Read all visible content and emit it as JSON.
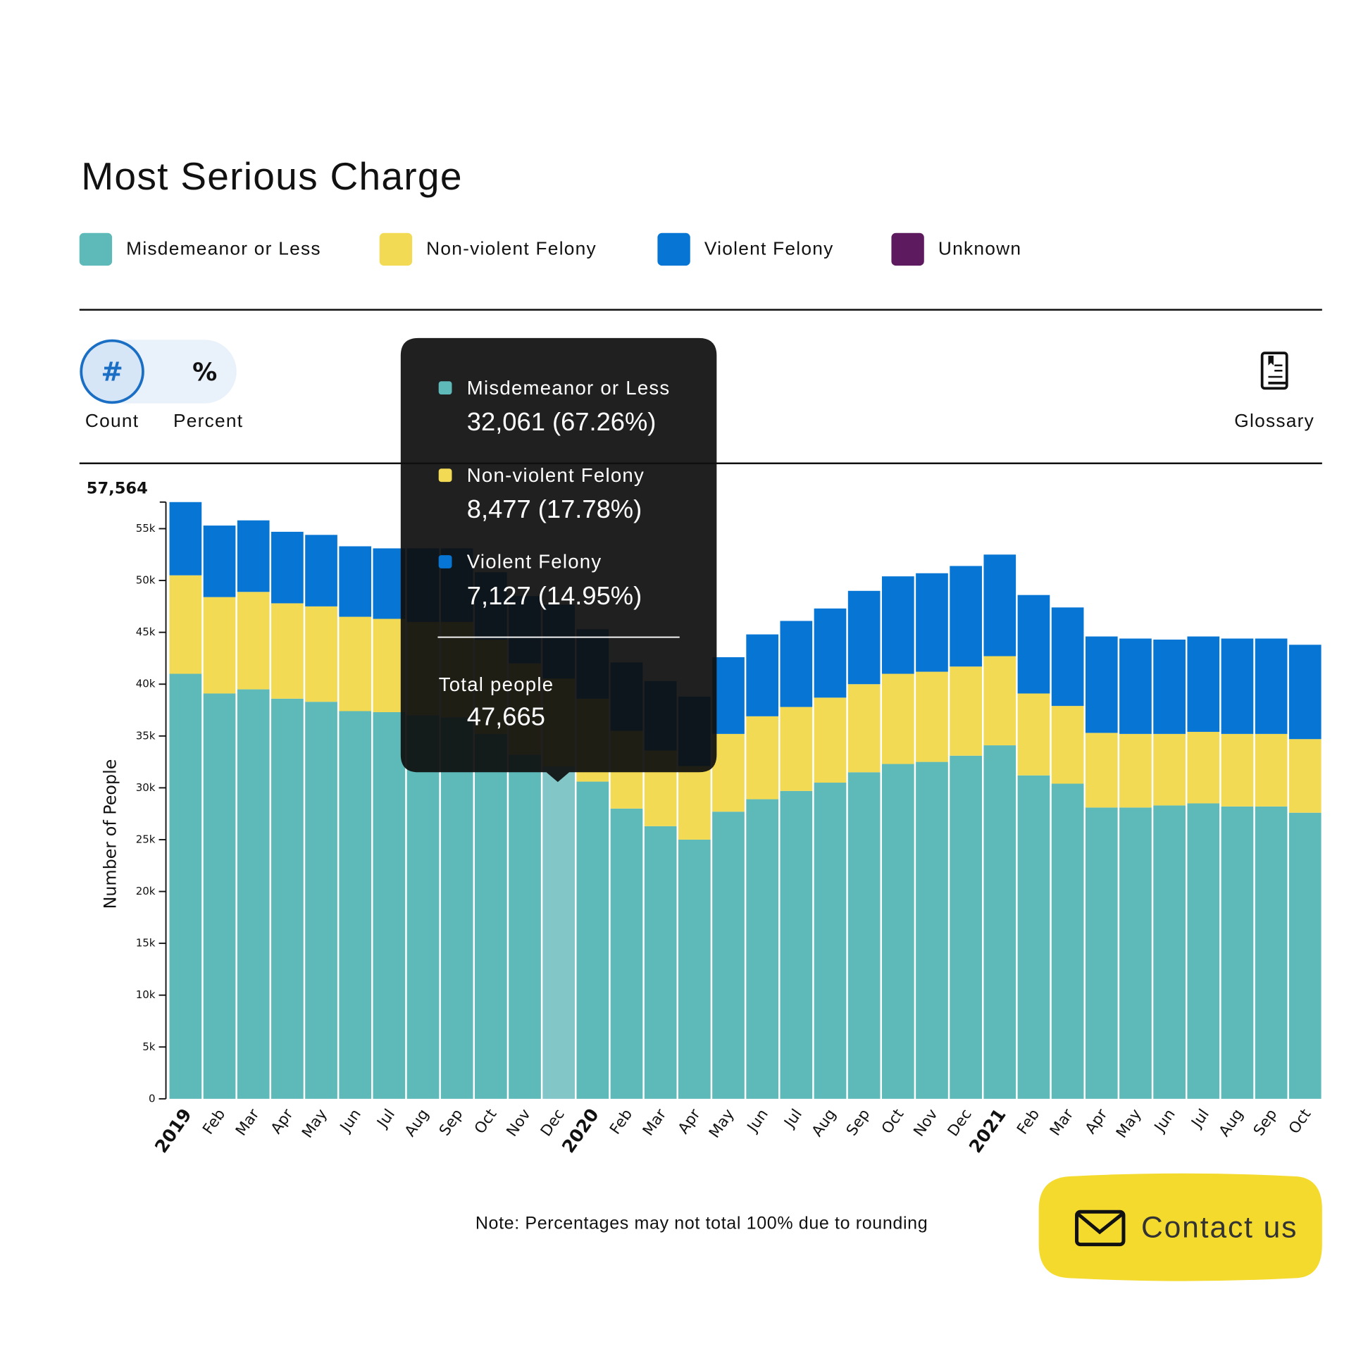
{
  "header": {
    "title": "Most Serious Charge"
  },
  "controls": {
    "count_symbol": "#",
    "percent_symbol": "%",
    "count_label": "Count",
    "percent_label": "Percent",
    "glossary": "Glossary"
  },
  "chart_data": {
    "type": "bar",
    "stacked": true,
    "y_label": "Number of People",
    "categories": [
      "2019",
      "Feb",
      "Mar",
      "Apr",
      "May",
      "Jun",
      "Jul",
      "Aug",
      "Sep",
      "Oct",
      "Nov",
      "Dec",
      "2020",
      "Feb",
      "Mar",
      "Apr",
      "May",
      "Jun",
      "Jul",
      "Aug",
      "Sep",
      "Oct",
      "Nov",
      "Dec",
      "2021",
      "Feb",
      "Mar",
      "Apr",
      "May",
      "Jun",
      "Jul",
      "Aug",
      "Sep",
      "Oct"
    ],
    "series": [
      {
        "name": "Misdemeanor or Less",
        "color": "#5eb9b9",
        "values": [
          41000,
          39100,
          39500,
          38600,
          38300,
          37400,
          37300,
          37000,
          36800,
          35200,
          33200,
          32061,
          30600,
          28000,
          26300,
          25000,
          27700,
          28900,
          29700,
          30500,
          31500,
          32300,
          32500,
          33100,
          34100,
          31200,
          30400,
          28100,
          28100,
          28300,
          28500,
          28200,
          28200,
          27600
        ]
      },
      {
        "name": "Non-violent Felony",
        "color": "#f2da55",
        "values": [
          9500,
          9300,
          9400,
          9200,
          9200,
          9100,
          9000,
          9000,
          9200,
          9100,
          8800,
          8477,
          8000,
          7500,
          7300,
          7100,
          7500,
          8000,
          8100,
          8200,
          8500,
          8700,
          8700,
          8600,
          8600,
          7900,
          7500,
          7200,
          7100,
          6900,
          6900,
          7000,
          7000,
          7100
        ]
      },
      {
        "name": "Violent Felony",
        "color": "#0675d3",
        "values": [
          7064,
          6900,
          6900,
          6900,
          6900,
          6800,
          6800,
          7100,
          7100,
          6500,
          6500,
          7127,
          6700,
          6600,
          6700,
          6700,
          7400,
          7900,
          8300,
          8600,
          9000,
          9400,
          9500,
          9700,
          9800,
          9500,
          9500,
          9300,
          9200,
          9100,
          9200,
          9200,
          9200,
          9100
        ]
      },
      {
        "name": "Unknown",
        "color": "#5e1a5e",
        "values": [
          0,
          0,
          0,
          0,
          0,
          0,
          0,
          0,
          0,
          0,
          0,
          0,
          0,
          0,
          0,
          0,
          0,
          0,
          0,
          0,
          0,
          0,
          0,
          0,
          0,
          0,
          0,
          0,
          0,
          0,
          0,
          0,
          0,
          0
        ]
      }
    ],
    "ylim": [
      0,
      57564
    ],
    "yticks": [
      0,
      {
        "value": 5000,
        "label": "5k"
      },
      {
        "value": 10000,
        "label": "10k"
      },
      {
        "value": 15000,
        "label": "15k"
      },
      {
        "value": 20000,
        "label": "20k"
      },
      {
        "value": 25000,
        "label": "25k"
      },
      {
        "value": 30000,
        "label": "30k"
      },
      {
        "value": 35000,
        "label": "35k"
      },
      {
        "value": 40000,
        "label": "40k"
      },
      {
        "value": 45000,
        "label": "45k"
      },
      {
        "value": 50000,
        "label": "50k"
      },
      {
        "value": 55000,
        "label": "55k"
      },
      {
        "value": 57564,
        "label": "57,564"
      }
    ],
    "highlight_index": 11,
    "highlight_color": "#82c6c8"
  },
  "tooltip": {
    "items": [
      "32,061 (67.26%)",
      "8,477 (17.78%)",
      "7,127 (14.95%)"
    ],
    "total_label": "Total people",
    "total": "47,665"
  },
  "footer": {
    "note": "Note: Percentages may not total 100% due to rounding",
    "contact": "Contact us"
  }
}
